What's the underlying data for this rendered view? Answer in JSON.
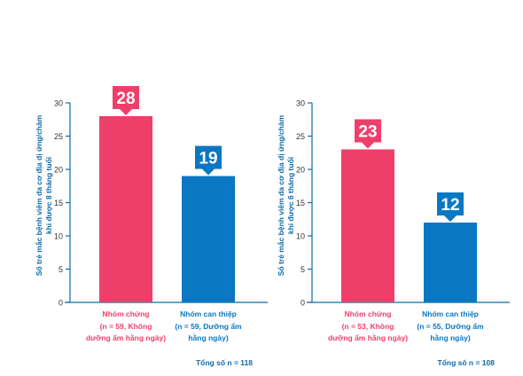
{
  "colors": {
    "control": "#ee3f6a",
    "intervention": "#0a77c2",
    "axis": "#0e6aa8",
    "text_blue": "#0e6aa8"
  },
  "chart_data": [
    {
      "type": "bar",
      "ylabel_lines": [
        "Số trẻ mắc bệnh viêm da cơ địa dị ứng/chàm",
        "khi được 8 tháng tuổi"
      ],
      "ylim": [
        0,
        30
      ],
      "yticks": [
        "0",
        "5",
        "10",
        "15",
        "20",
        "25",
        "30"
      ],
      "categories": [
        {
          "name": "Nhóm chứng",
          "lines": [
            "(n = 59, Không",
            "dưỡng ẩm hằng ngày)"
          ]
        },
        {
          "name": "Nhóm can thiệp",
          "lines": [
            "(n = 59, Dưỡng ẩm",
            "hằng ngày)"
          ]
        }
      ],
      "values": [
        28,
        19
      ],
      "value_labels": [
        "28",
        "19"
      ],
      "bar_colors": [
        "#ee3f6a",
        "#0a77c2"
      ],
      "total": "Tổng số n = 118"
    },
    {
      "type": "bar",
      "ylabel_lines": [
        "Số trẻ mắc bệnh viêm da cơ địa dị ứng/chàm",
        "khi được 6 tháng tuổi"
      ],
      "ylim": [
        0,
        30
      ],
      "yticks": [
        "0",
        "5",
        "10",
        "15",
        "20",
        "25",
        "30"
      ],
      "categories": [
        {
          "name": "Nhóm chứng",
          "lines": [
            "(n = 53, Không",
            "dưỡng ẩm hằng ngày)"
          ]
        },
        {
          "name": "Nhóm can thiệp",
          "lines": [
            "(n = 55, Dưỡng ẩm",
            "hằng ngày)"
          ]
        }
      ],
      "values": [
        23,
        12
      ],
      "value_labels": [
        "23",
        "12"
      ],
      "bar_colors": [
        "#ee3f6a",
        "#0a77c2"
      ],
      "total": "Tổng số n = 108"
    }
  ]
}
